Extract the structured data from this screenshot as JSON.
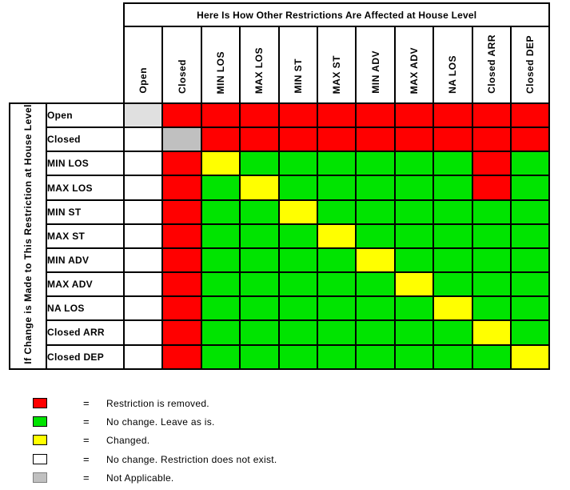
{
  "colors": {
    "red": "#FF0000",
    "green": "#00E400",
    "yellow": "#FFFF00",
    "white": "#FFFFFF",
    "gray": "#C0C0C0",
    "lightgray": "#E0E0E0"
  },
  "equals_sign": "=",
  "legend": [
    {
      "color": "red",
      "swatch_border": "#000000",
      "label": "Restriction is removed."
    },
    {
      "color": "green",
      "swatch_border": "#000000",
      "label": "No change. Leave as is."
    },
    {
      "color": "yellow",
      "swatch_border": "#000000",
      "label": "Changed."
    },
    {
      "color": "white",
      "swatch_border": "#000000",
      "label": "No change. Restriction does not exist."
    },
    {
      "color": "gray",
      "swatch_border": "#808080",
      "label": "Not Applicable."
    }
  ],
  "chart_data": {
    "type": "heatmap",
    "title": "Here Is How Other Restrictions Are Affected at House Level",
    "y_axis_label": "If Change is Made to This Restriction at House Level",
    "legend_position": "bottom-left",
    "columns": [
      "Open",
      "Closed",
      "MIN LOS",
      "MAX LOS",
      "MIN ST",
      "MAX ST",
      "MIN ADV",
      "MAX ADV",
      "NA LOS",
      "Closed ARR",
      "Closed DEP"
    ],
    "rows": [
      "Open",
      "Closed",
      "MIN LOS",
      "MAX LOS",
      "MIN ST",
      "MAX ST",
      "MIN ADV",
      "MAX ADV",
      "NA LOS",
      "Closed ARR",
      "Closed DEP"
    ],
    "cell_colors": [
      [
        "lightgray",
        "red",
        "red",
        "red",
        "red",
        "red",
        "red",
        "red",
        "red",
        "red",
        "red"
      ],
      [
        "white",
        "gray",
        "red",
        "red",
        "red",
        "red",
        "red",
        "red",
        "red",
        "red",
        "red"
      ],
      [
        "white",
        "red",
        "yellow",
        "green",
        "green",
        "green",
        "green",
        "green",
        "green",
        "red",
        "green"
      ],
      [
        "white",
        "red",
        "green",
        "yellow",
        "green",
        "green",
        "green",
        "green",
        "green",
        "red",
        "green"
      ],
      [
        "white",
        "red",
        "green",
        "green",
        "yellow",
        "green",
        "green",
        "green",
        "green",
        "green",
        "green"
      ],
      [
        "white",
        "red",
        "green",
        "green",
        "green",
        "yellow",
        "green",
        "green",
        "green",
        "green",
        "green"
      ],
      [
        "white",
        "red",
        "green",
        "green",
        "green",
        "green",
        "yellow",
        "green",
        "green",
        "green",
        "green"
      ],
      [
        "white",
        "red",
        "green",
        "green",
        "green",
        "green",
        "green",
        "yellow",
        "green",
        "green",
        "green"
      ],
      [
        "white",
        "red",
        "green",
        "green",
        "green",
        "green",
        "green",
        "green",
        "yellow",
        "green",
        "green"
      ],
      [
        "white",
        "red",
        "green",
        "green",
        "green",
        "green",
        "green",
        "green",
        "green",
        "yellow",
        "green"
      ],
      [
        "white",
        "red",
        "green",
        "green",
        "green",
        "green",
        "green",
        "green",
        "green",
        "green",
        "yellow"
      ]
    ],
    "cell_meanings": {
      "red": "Restriction is removed.",
      "green": "No change. Leave as is.",
      "yellow": "Changed.",
      "white": "No change. Restriction does not exist.",
      "gray": "Not Applicable.",
      "lightgray": "Not Applicable."
    }
  }
}
